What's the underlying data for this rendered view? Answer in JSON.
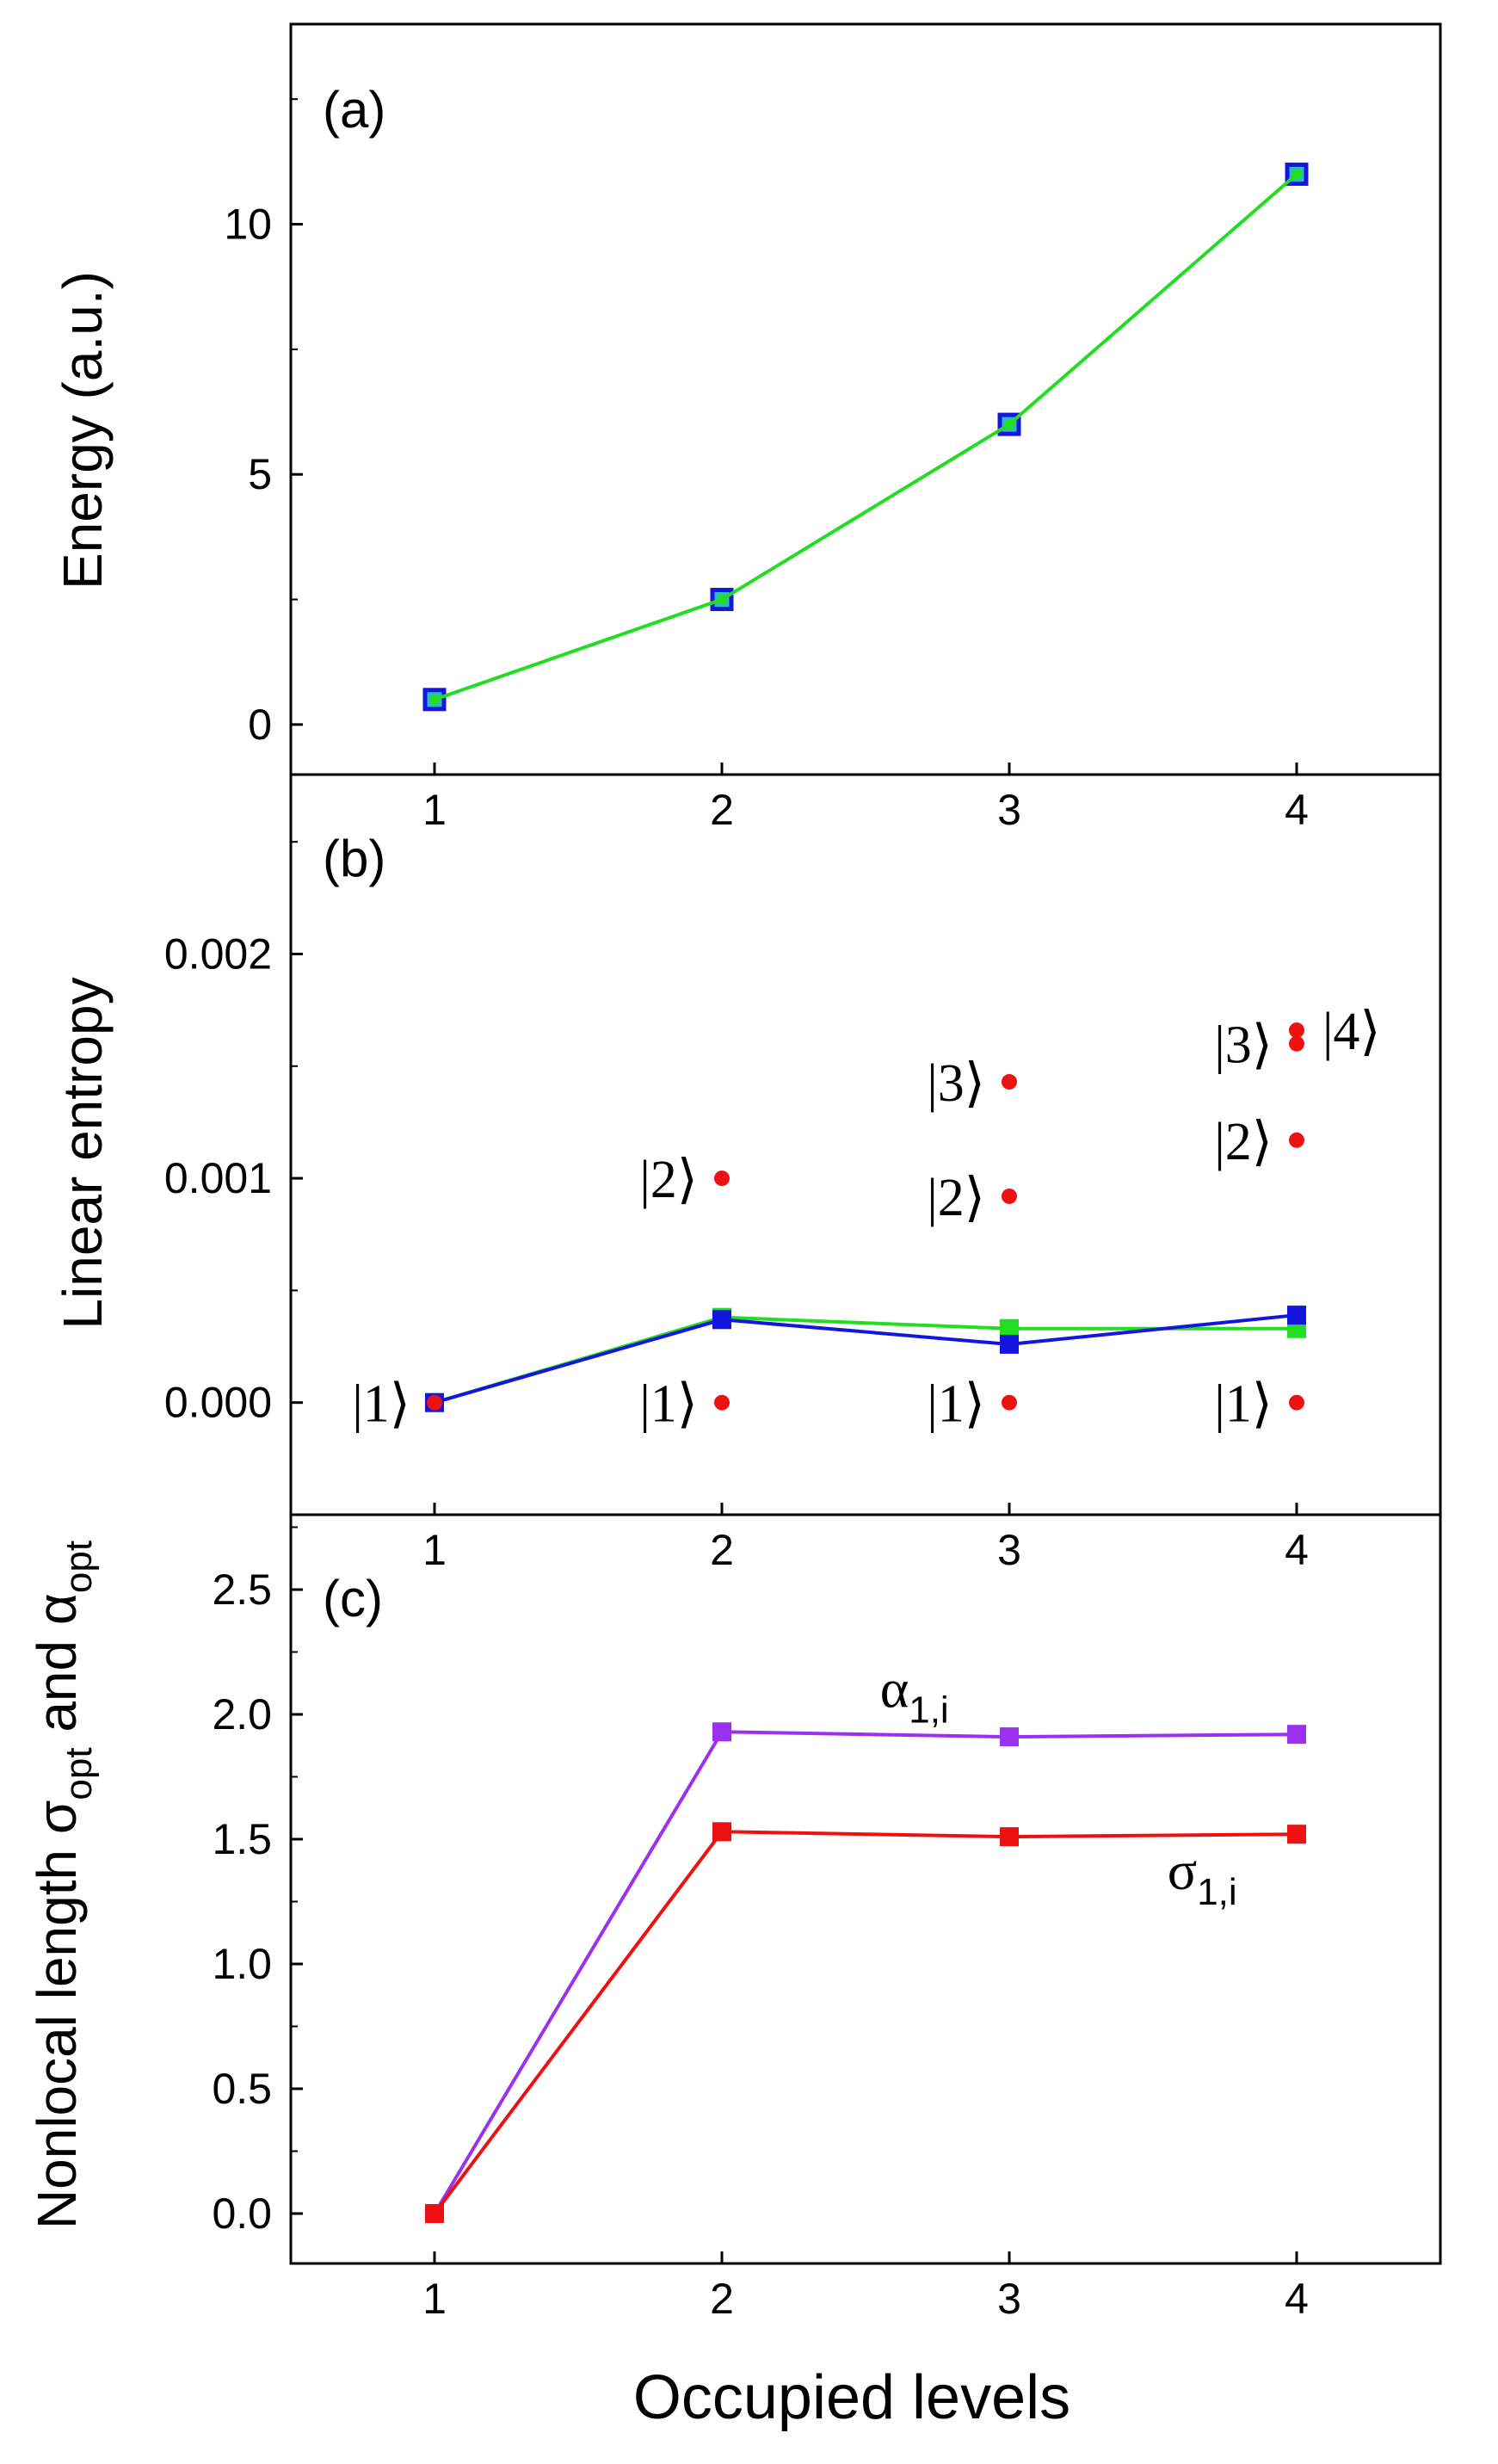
{
  "figure": {
    "xlabel": "Occupied levels",
    "colors": {
      "axis": "#000000",
      "green": "#22dd22",
      "blue": "#1515e0",
      "red": "#ee1111",
      "purple": "#9b30f0"
    }
  },
  "chart_data": [
    {
      "id": "a",
      "type": "line",
      "panel_label": "(a)",
      "ylabel": "Energy (a.u.)",
      "xlim": [
        0.5,
        4.5
      ],
      "ylim": [
        -1,
        14
      ],
      "xticks": [
        "1",
        "2",
        "3",
        "4"
      ],
      "yticks": [
        "0",
        "5",
        "10"
      ],
      "x": [
        1,
        2,
        3,
        4
      ],
      "series": [
        {
          "name": "blue-square",
          "color": "#1515e0",
          "marker": "square-open",
          "line": false,
          "values": [
            0.5,
            2.5,
            6.0,
            11.0
          ]
        },
        {
          "name": "green-line",
          "color": "#22dd22",
          "marker": "dot",
          "line": true,
          "values": [
            0.5,
            2.5,
            6.0,
            11.0
          ]
        }
      ]
    },
    {
      "id": "b",
      "type": "line",
      "panel_label": "(b)",
      "ylabel": "Linear entropy",
      "xlim": [
        0.5,
        4.5
      ],
      "ylim": [
        -0.0005,
        0.0028
      ],
      "xticks": [
        "1",
        "2",
        "3",
        "4"
      ],
      "yticks": [
        "0.000",
        "0.001",
        "0.002"
      ],
      "x": [
        1,
        2,
        3,
        4
      ],
      "series": [
        {
          "name": "green",
          "color": "#22dd22",
          "marker": "square",
          "line": true,
          "values": [
            0.0,
            0.00038,
            0.00033,
            0.00033
          ]
        },
        {
          "name": "blue",
          "color": "#1515e0",
          "marker": "square",
          "line": true,
          "values": [
            0.0,
            0.00037,
            0.00026,
            0.00039
          ]
        }
      ],
      "points": [
        {
          "x": 1,
          "y": 0.0,
          "color": "#ee1111"
        },
        {
          "x": 2,
          "y": 0.0,
          "color": "#ee1111"
        },
        {
          "x": 2,
          "y": 0.001,
          "color": "#ee1111"
        },
        {
          "x": 3,
          "y": 0.0,
          "color": "#ee1111"
        },
        {
          "x": 3,
          "y": 0.00092,
          "color": "#ee1111"
        },
        {
          "x": 3,
          "y": 0.00143,
          "color": "#ee1111"
        },
        {
          "x": 4,
          "y": 0.0,
          "color": "#ee1111"
        },
        {
          "x": 4,
          "y": 0.00117,
          "color": "#ee1111"
        },
        {
          "x": 4,
          "y": 0.0016,
          "color": "#ee1111"
        },
        {
          "x": 4,
          "y": 0.00166,
          "color": "#ee1111"
        }
      ],
      "annotations": [
        {
          "text": "|1⟩",
          "x": 1,
          "y": 0.0,
          "place": "left"
        },
        {
          "text": "|1⟩",
          "x": 2,
          "y": 0.0,
          "place": "left"
        },
        {
          "text": "|2⟩",
          "x": 2,
          "y": 0.001,
          "place": "left"
        },
        {
          "text": "|1⟩",
          "x": 3,
          "y": 0.0,
          "place": "left"
        },
        {
          "text": "|2⟩",
          "x": 3,
          "y": 0.00092,
          "place": "left"
        },
        {
          "text": "|3⟩",
          "x": 3,
          "y": 0.00143,
          "place": "left"
        },
        {
          "text": "|1⟩",
          "x": 4,
          "y": 0.0,
          "place": "left"
        },
        {
          "text": "|2⟩",
          "x": 4,
          "y": 0.00117,
          "place": "left"
        },
        {
          "text": "|3⟩",
          "x": 4,
          "y": 0.0016,
          "place": "left"
        },
        {
          "text": "|4⟩",
          "x": 4,
          "y": 0.00166,
          "place": "right"
        }
      ]
    },
    {
      "id": "c",
      "type": "line",
      "panel_label": "(c)",
      "ylabel": "Nonlocal length σ",
      "ylabel_sub": "opt",
      "ylabel_mid": " and α",
      "ylabel_sub2": "opt",
      "xlim": [
        0.5,
        4.5
      ],
      "ylim": [
        -0.2,
        2.8
      ],
      "xticks": [
        "1",
        "2",
        "3",
        "4"
      ],
      "yticks": [
        "0.0",
        "0.5",
        "1.0",
        "1.5",
        "2.0",
        "2.5"
      ],
      "x": [
        1,
        2,
        3,
        4
      ],
      "series": [
        {
          "name": "alpha",
          "label": "α",
          "label_sub": "1,i",
          "color": "#9b30f0",
          "marker": "square",
          "line": true,
          "values": [
            0.0,
            1.93,
            1.91,
            1.92
          ],
          "label_at": {
            "x": 2.55,
            "y": 2.03
          }
        },
        {
          "name": "sigma",
          "label": "σ",
          "label_sub": "1,i",
          "color": "#ee1111",
          "marker": "square",
          "line": true,
          "values": [
            0.0,
            1.53,
            1.51,
            1.52
          ],
          "label_at": {
            "x": 3.55,
            "y": 1.3
          }
        }
      ]
    }
  ]
}
